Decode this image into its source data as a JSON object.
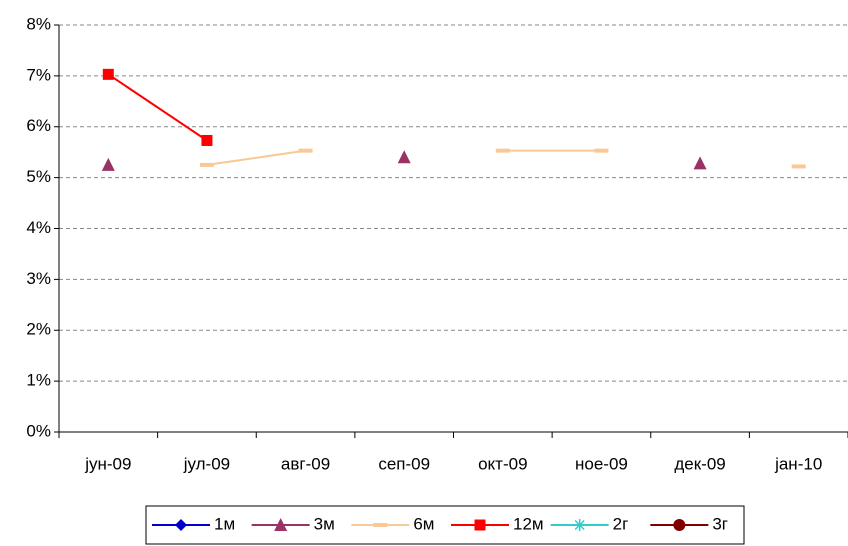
{
  "chart_data": {
    "type": "line",
    "categories": [
      "јун-09",
      "јул-09",
      "авг-09",
      "сеп-09",
      "окт-09",
      "ное-09",
      "дек-09",
      "јан-10"
    ],
    "series": [
      {
        "name": "1м",
        "color": "#0000cc",
        "marker": "diamond",
        "values": [
          null,
          null,
          null,
          null,
          null,
          null,
          null,
          null
        ]
      },
      {
        "name": "3м",
        "color": "#993366",
        "marker": "triangle",
        "values": [
          5.25,
          null,
          null,
          5.4,
          null,
          null,
          5.28,
          null
        ]
      },
      {
        "name": "6м",
        "color": "#fac896",
        "marker": "dash",
        "values": [
          null,
          5.25,
          5.53,
          null,
          5.53,
          5.53,
          null,
          5.22
        ]
      },
      {
        "name": "12м",
        "color": "#ff0000",
        "marker": "square",
        "values": [
          7.03,
          5.73,
          null,
          null,
          null,
          null,
          null,
          null
        ]
      },
      {
        "name": "2г",
        "color": "#33cccc",
        "marker": "asterisk",
        "values": [
          null,
          null,
          null,
          null,
          null,
          null,
          null,
          null
        ]
      },
      {
        "name": "3г",
        "color": "#800000",
        "marker": "circle",
        "values": [
          null,
          null,
          null,
          null,
          null,
          null,
          null,
          null
        ]
      }
    ],
    "ylim": [
      0,
      8
    ],
    "yticks": [
      {
        "value": 0,
        "label": "0%"
      },
      {
        "value": 1,
        "label": "1%"
      },
      {
        "value": 2,
        "label": "2%"
      },
      {
        "value": 3,
        "label": "3%"
      },
      {
        "value": 4,
        "label": "4%"
      },
      {
        "value": 5,
        "label": "5%"
      },
      {
        "value": 6,
        "label": "6%"
      },
      {
        "value": 7,
        "label": "7%"
      },
      {
        "value": 8,
        "label": "8%"
      }
    ],
    "grid": true,
    "legend": "bottom"
  }
}
